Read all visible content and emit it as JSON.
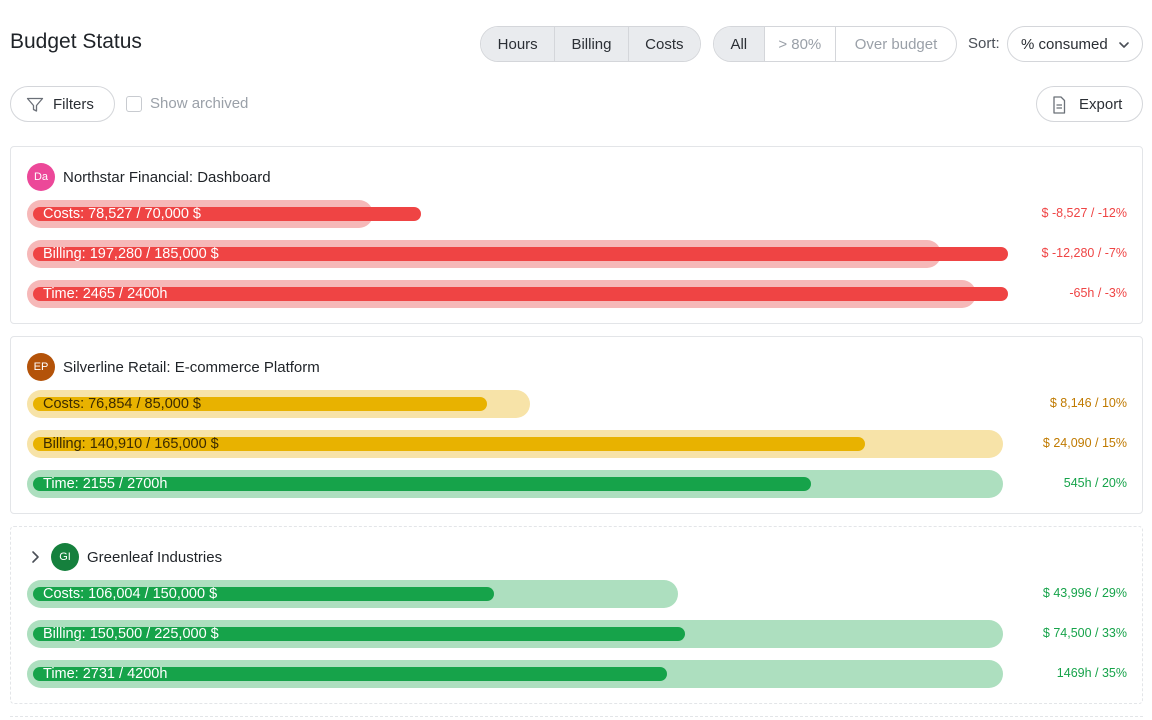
{
  "header": {
    "title": "Budget Status",
    "metric_options": [
      "Hours",
      "Billing",
      "Costs"
    ],
    "filter_options": [
      "All",
      "> 80%",
      "Over budget"
    ],
    "sort_label": "Sort:",
    "sort_value": "% consumed"
  },
  "toolbar": {
    "filters_label": "Filters",
    "show_archived_label": "Show archived",
    "show_archived_checked": false,
    "export_label": "Export"
  },
  "colors": {
    "over_budget": "#ef4444",
    "warning": "#e8b200",
    "ok": "#16a34a"
  },
  "projects": [
    {
      "initials": "Da",
      "avatar_color": "#ec4899",
      "name": "Northstar Financial: Dashboard",
      "collapsible": false,
      "bars": [
        {
          "label": "Costs: 78,527 / 70,000 $",
          "value_text": "$ -8,527 / -12%",
          "consumed_pct": 112,
          "status": "over_budget"
        },
        {
          "label": "Billing: 197,280 / 185,000 $",
          "value_text": "$ -12,280 / -7%",
          "consumed_pct": 107,
          "status": "over_budget"
        },
        {
          "label": "Time: 2465 / 2400h",
          "value_text": "-65h / -3%",
          "consumed_pct": 103,
          "status": "over_budget"
        }
      ]
    },
    {
      "initials": "EP",
      "avatar_color": "#b45309",
      "name": "Silverline Retail: E-commerce Platform",
      "collapsible": false,
      "bars": [
        {
          "label": "Costs: 76,854 / 85,000 $",
          "value_text": "$ 8,146 / 10%",
          "consumed_pct": 90,
          "status": "warning"
        },
        {
          "label": "Billing: 140,910 / 165,000 $",
          "value_text": "$ 24,090 / 15%",
          "consumed_pct": 85,
          "status": "warning"
        },
        {
          "label": "Time: 2155 / 2700h",
          "value_text": "545h / 20%",
          "consumed_pct": 80,
          "status": "ok"
        }
      ]
    },
    {
      "initials": "GI",
      "avatar_color": "#15803d",
      "name": "Greenleaf Industries",
      "collapsible": true,
      "bars": [
        {
          "label": "Costs: 106,004 / 150,000 $",
          "value_text": "$ 43,996 / 29%",
          "consumed_pct": 71,
          "status": "ok"
        },
        {
          "label": "Billing: 150,500 / 225,000 $",
          "value_text": "$ 74,500 / 33%",
          "consumed_pct": 67,
          "status": "ok"
        },
        {
          "label": "Time: 2731 / 4200h",
          "value_text": "1469h / 35%",
          "consumed_pct": 65,
          "status": "ok"
        }
      ]
    }
  ]
}
